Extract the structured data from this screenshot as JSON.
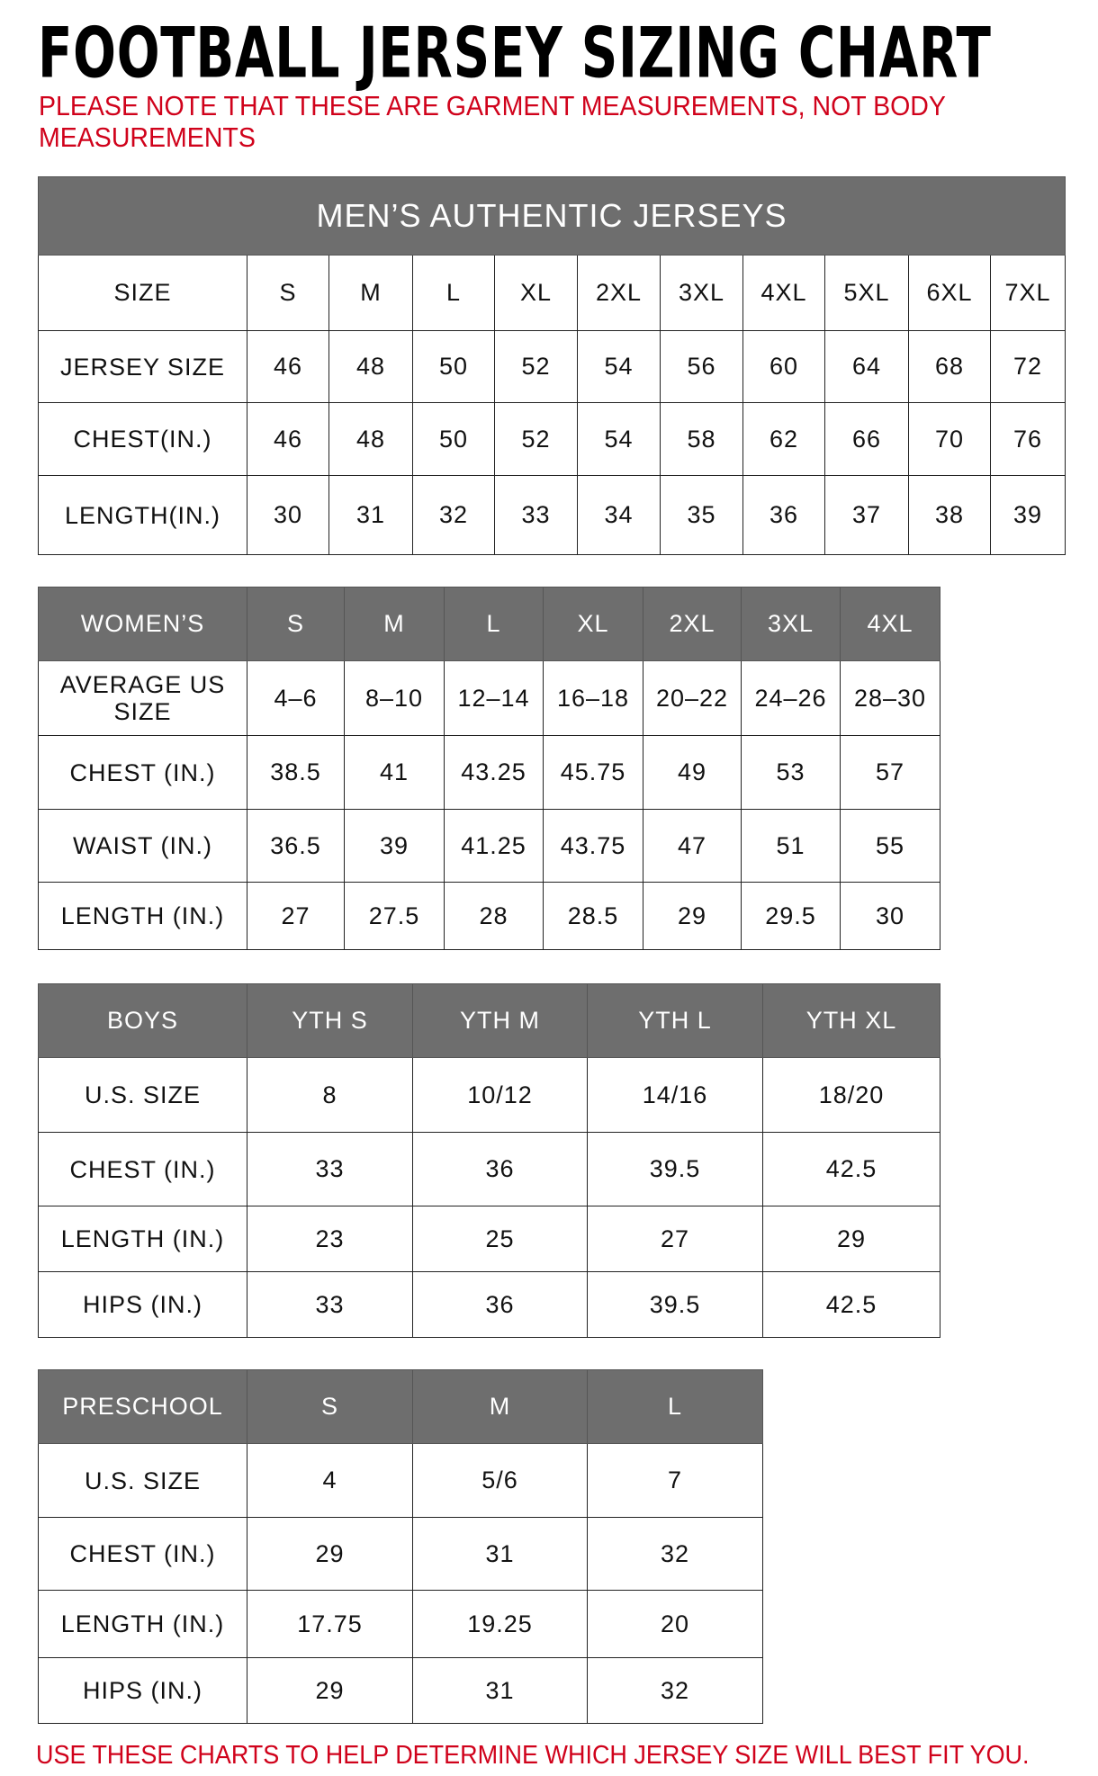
{
  "title": "FOOTBALL JERSEY SIZING CHART",
  "note": "PLEASE NOTE THAT THESE ARE GARMENT MEASUREMENTS, NOT BODY MEASUREMENTS",
  "footer": "USE THESE CHARTS TO HELP DETERMINE WHICH JERSEY SIZE WILL BEST FIT YOU.",
  "colors": {
    "header_gray": "#6e6e6e",
    "note_red": "#d0021b"
  },
  "tables": [
    {
      "id": "mens",
      "banner": "MEN’S AUTHENTIC JERSEYS",
      "header": [
        "SIZE",
        "S",
        "M",
        "L",
        "XL",
        "2XL",
        "3XL",
        "4XL",
        "5XL",
        "6XL",
        "7XL"
      ],
      "header_style": "plain",
      "rows": [
        [
          "JERSEY SIZE",
          "46",
          "48",
          "50",
          "52",
          "54",
          "56",
          "60",
          "64",
          "68",
          "72"
        ],
        [
          "CHEST(IN.)",
          "46",
          "48",
          "50",
          "52",
          "54",
          "58",
          "62",
          "66",
          "70",
          "76"
        ],
        [
          "LENGTH(IN.)",
          "30",
          "31",
          "32",
          "33",
          "34",
          "35",
          "36",
          "37",
          "38",
          "39"
        ]
      ]
    },
    {
      "id": "womens",
      "header": [
        "WOMEN’S",
        "S",
        "M",
        "L",
        "XL",
        "2XL",
        "3XL",
        "4XL"
      ],
      "header_style": "gray",
      "rows": [
        [
          "AVERAGE US SIZE",
          "4–6",
          "8–10",
          "12–14",
          "16–18",
          "20–22",
          "24–26",
          "28–30"
        ],
        [
          "CHEST (IN.)",
          "38.5",
          "41",
          "43.25",
          "45.75",
          "49",
          "53",
          "57"
        ],
        [
          "WAIST (IN.)",
          "36.5",
          "39",
          "41.25",
          "43.75",
          "47",
          "51",
          "55"
        ],
        [
          "LENGTH (IN.)",
          "27",
          "27.5",
          "28",
          "28.5",
          "29",
          "29.5",
          "30"
        ]
      ]
    },
    {
      "id": "boys",
      "header": [
        "BOYS",
        "YTH S",
        "YTH M",
        "YTH L",
        "YTH XL"
      ],
      "header_style": "gray",
      "rows": [
        [
          "U.S. SIZE",
          "8",
          "10/12",
          "14/16",
          "18/20"
        ],
        [
          "CHEST (IN.)",
          "33",
          "36",
          "39.5",
          "42.5"
        ],
        [
          "LENGTH (IN.)",
          "23",
          "25",
          "27",
          "29"
        ],
        [
          "HIPS (IN.)",
          "33",
          "36",
          "39.5",
          "42.5"
        ]
      ]
    },
    {
      "id": "preschool",
      "header": [
        "PRESCHOOL",
        "S",
        "M",
        "L"
      ],
      "header_style": "gray",
      "rows": [
        [
          "U.S. SIZE",
          "4",
          "5/6",
          "7"
        ],
        [
          "CHEST (IN.)",
          "29",
          "31",
          "32"
        ],
        [
          "LENGTH (IN.)",
          "17.75",
          "19.25",
          "20"
        ],
        [
          "HIPS (IN.)",
          "29",
          "31",
          "32"
        ]
      ]
    }
  ]
}
